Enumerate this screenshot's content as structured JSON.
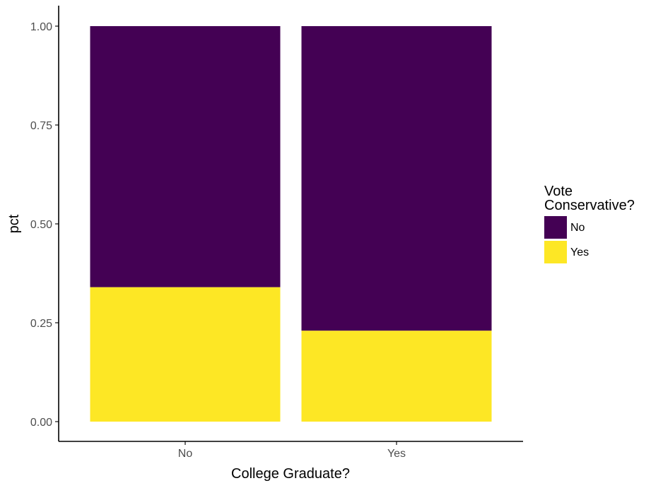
{
  "chart_data": {
    "type": "bar",
    "stacked": true,
    "categories": [
      "No",
      "Yes"
    ],
    "series": [
      {
        "name": "Yes",
        "values": [
          0.34,
          0.23
        ],
        "color": "#FDE725"
      },
      {
        "name": "No",
        "values": [
          0.66,
          0.77
        ],
        "color": "#440154"
      }
    ],
    "xlabel": "College Graduate?",
    "ylabel": "pct",
    "ylim": [
      0,
      1
    ],
    "yticks": [
      "0.00",
      "0.25",
      "0.50",
      "0.75",
      "1.00"
    ],
    "ytick_values": [
      0,
      0.25,
      0.5,
      0.75,
      1.0
    ],
    "grid": false,
    "legend": {
      "title_lines": [
        "Vote",
        "Conservative?"
      ],
      "placement": "right",
      "items": [
        {
          "label": "No",
          "color": "#440154"
        },
        {
          "label": "Yes",
          "color": "#FDE725"
        }
      ]
    }
  }
}
